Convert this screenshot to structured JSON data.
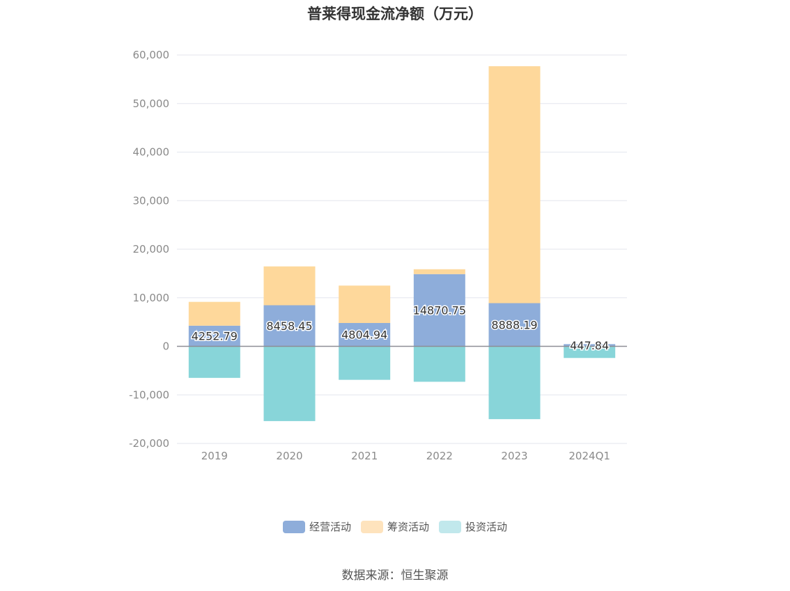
{
  "chart_data": {
    "type": "bar",
    "stacked": true,
    "title": "普莱得现金流净额（万元）",
    "categories": [
      "2019",
      "2020",
      "2021",
      "2022",
      "2023",
      "2024Q1"
    ],
    "series": [
      {
        "name": "经营活动",
        "color": "#8eadda",
        "values": [
          4252.79,
          8458.45,
          4804.94,
          14870.75,
          8888.19,
          447.84
        ]
      },
      {
        "name": "筹资活动",
        "color": "#fed89b",
        "values": [
          4900,
          8000,
          7700,
          1000,
          48800,
          0
        ]
      },
      {
        "name": "投资活动",
        "color": "#88d5d9",
        "values": [
          -6500,
          -15400,
          -6900,
          -7300,
          -15000,
          -2400
        ]
      }
    ],
    "data_labels": [
      "4252.79",
      "8458.45",
      "4804.94",
      "14870.75",
      "8888.19",
      "447.84"
    ],
    "y_ticks": [
      "60,000",
      "50,000",
      "40,000",
      "30,000",
      "20,000",
      "10,000",
      "0",
      "-10,000",
      "-20,000"
    ],
    "ylim": [
      -20000,
      60000
    ],
    "xlabel": "",
    "ylabel": "",
    "legend_position": "bottom"
  },
  "legend": [
    {
      "label": "经营活动",
      "color": "#8eadda"
    },
    {
      "label": "筹资活动",
      "color": "#fee3bd"
    },
    {
      "label": "投资活动",
      "color": "#c1e8ec"
    }
  ],
  "source": "数据来源：恒生聚源"
}
